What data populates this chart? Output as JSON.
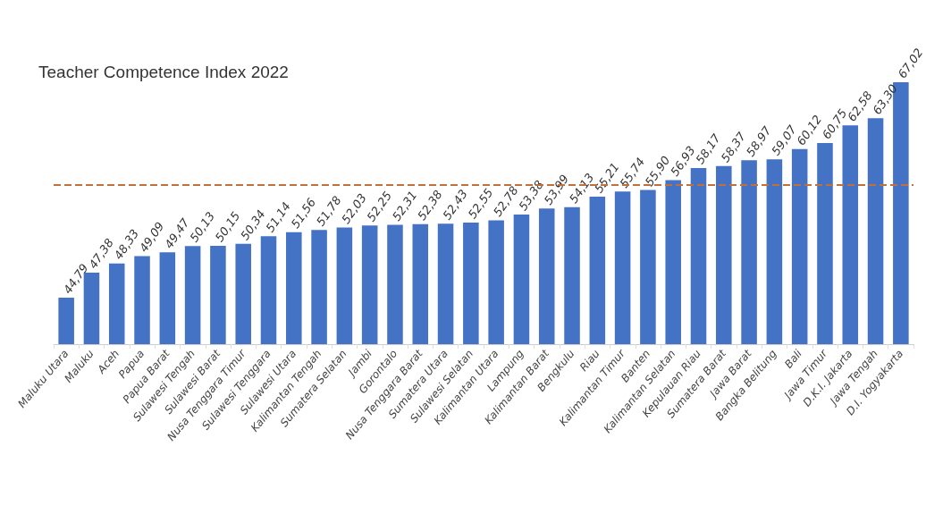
{
  "chart_data": {
    "type": "bar",
    "title": "Teacher Competence Index 2022",
    "categories": [
      "Maluku Utara",
      "Maluku",
      "Aceh",
      "Papua",
      "Papua Barat",
      "Sulawesi Tengah",
      "Sulawesi Barat",
      "Nusa Tenggara Timur",
      "Sulawesi Tenggara",
      "Sulawesi Utara",
      "Kalimantan Tengah",
      "Sumatera Selatan",
      "Jambi",
      "Gorontalo",
      "Nusa Tenggara Barat",
      "Sumatera Utara",
      "Sulawesi Selatan",
      "Kalimantan Utara",
      "Lampung",
      "Kalimantan Barat",
      "Bengkulu",
      "Riau",
      "Kalimantan Timur",
      "Banten",
      "Kalimantan Selatan",
      "Kepulauan Riau",
      "Sumatera Barat",
      "Jawa Barat",
      "Bangka Belitung",
      "Bali",
      "Jawa Timur",
      "D.K.I. Jakarta",
      "Jawa Tengah",
      "D.I. Yogyakarta"
    ],
    "values": [
      44.79,
      47.38,
      48.33,
      49.09,
      49.47,
      50.13,
      50.15,
      50.34,
      51.14,
      51.56,
      51.78,
      52.03,
      52.25,
      52.31,
      52.38,
      52.43,
      52.55,
      52.78,
      53.38,
      53.99,
      54.13,
      55.21,
      55.74,
      55.9,
      56.93,
      58.17,
      58.37,
      58.97,
      59.07,
      60.12,
      60.75,
      62.58,
      63.3,
      67.02
    ],
    "value_labels": [
      "44,79",
      "47,38",
      "48,33",
      "49,09",
      "49,47",
      "50,13",
      "50,15",
      "50,34",
      "51,14",
      "51,56",
      "51,78",
      "52,03",
      "52,25",
      "52,31",
      "52,38",
      "52,43",
      "52,55",
      "52,78",
      "53,38",
      "53,99",
      "54,13",
      "55,21",
      "55,74",
      "55,90",
      "56,93",
      "58,17",
      "58,37",
      "58,97",
      "59,07",
      "60,12",
      "60,75",
      "62,58",
      "63,30",
      "67,02"
    ],
    "color": "#4472c4",
    "ylim": [
      40,
      67.02
    ],
    "tick_labels": "x",
    "ref_lines": [
      {
        "axis": "y",
        "value": 56.4,
        "color": "#c0703a",
        "line_style": "dashed"
      }
    ]
  }
}
